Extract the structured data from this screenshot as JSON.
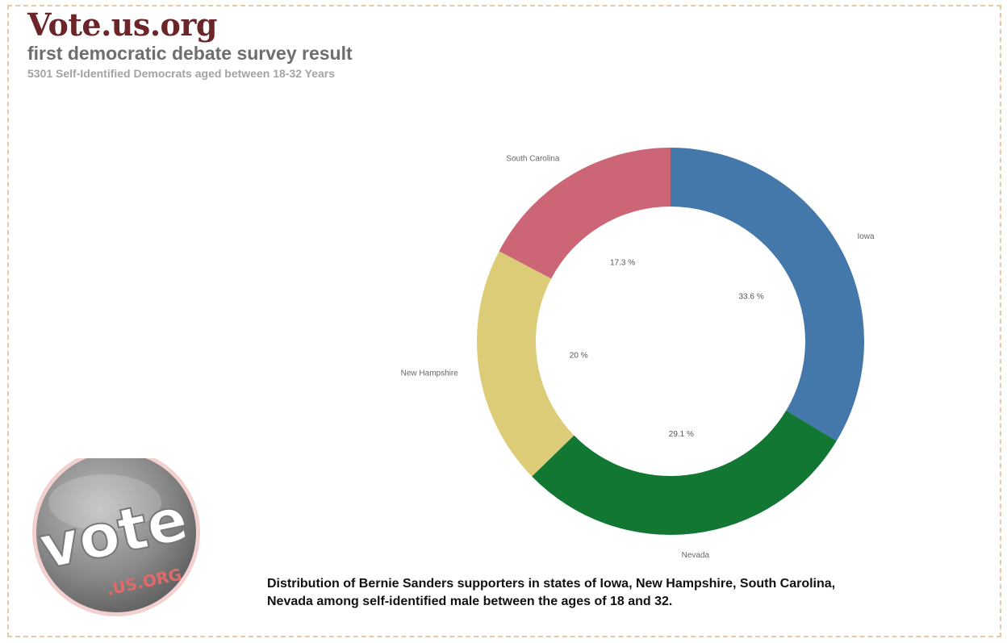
{
  "header": {
    "brand": "Vote.us.org",
    "subtitle": "first democratic debate survey result",
    "description": "5301 Self-Identified Democrats aged between 18-32 Years"
  },
  "chart_data": {
    "type": "pie",
    "donut": true,
    "slices": [
      {
        "label": "Iowa",
        "value": 33.6,
        "value_label": "33.6 %",
        "color": "#4477aa"
      },
      {
        "label": "Nevada",
        "value": 29.1,
        "value_label": "29.1 %",
        "color": "#117733"
      },
      {
        "label": "New Hampshire",
        "value": 20,
        "value_label": "20 %",
        "color": "#ddcc77"
      },
      {
        "label": "South Carolina",
        "value": 17.3,
        "value_label": "17.3 %",
        "color": "#cc6677"
      }
    ],
    "start": "top",
    "direction": "clockwise"
  },
  "caption": {
    "line1": "Distribution of Bernie Sanders supporters in states of Iowa, New Hampshire, South Carolina,",
    "line2": "Nevada among self-identified male between the ages of 18 and 32."
  },
  "logo": {
    "word": "vote",
    "domain": ".US.ORG"
  },
  "colors": {
    "brand": "#6b2427",
    "frame": "#e8c9a6"
  }
}
